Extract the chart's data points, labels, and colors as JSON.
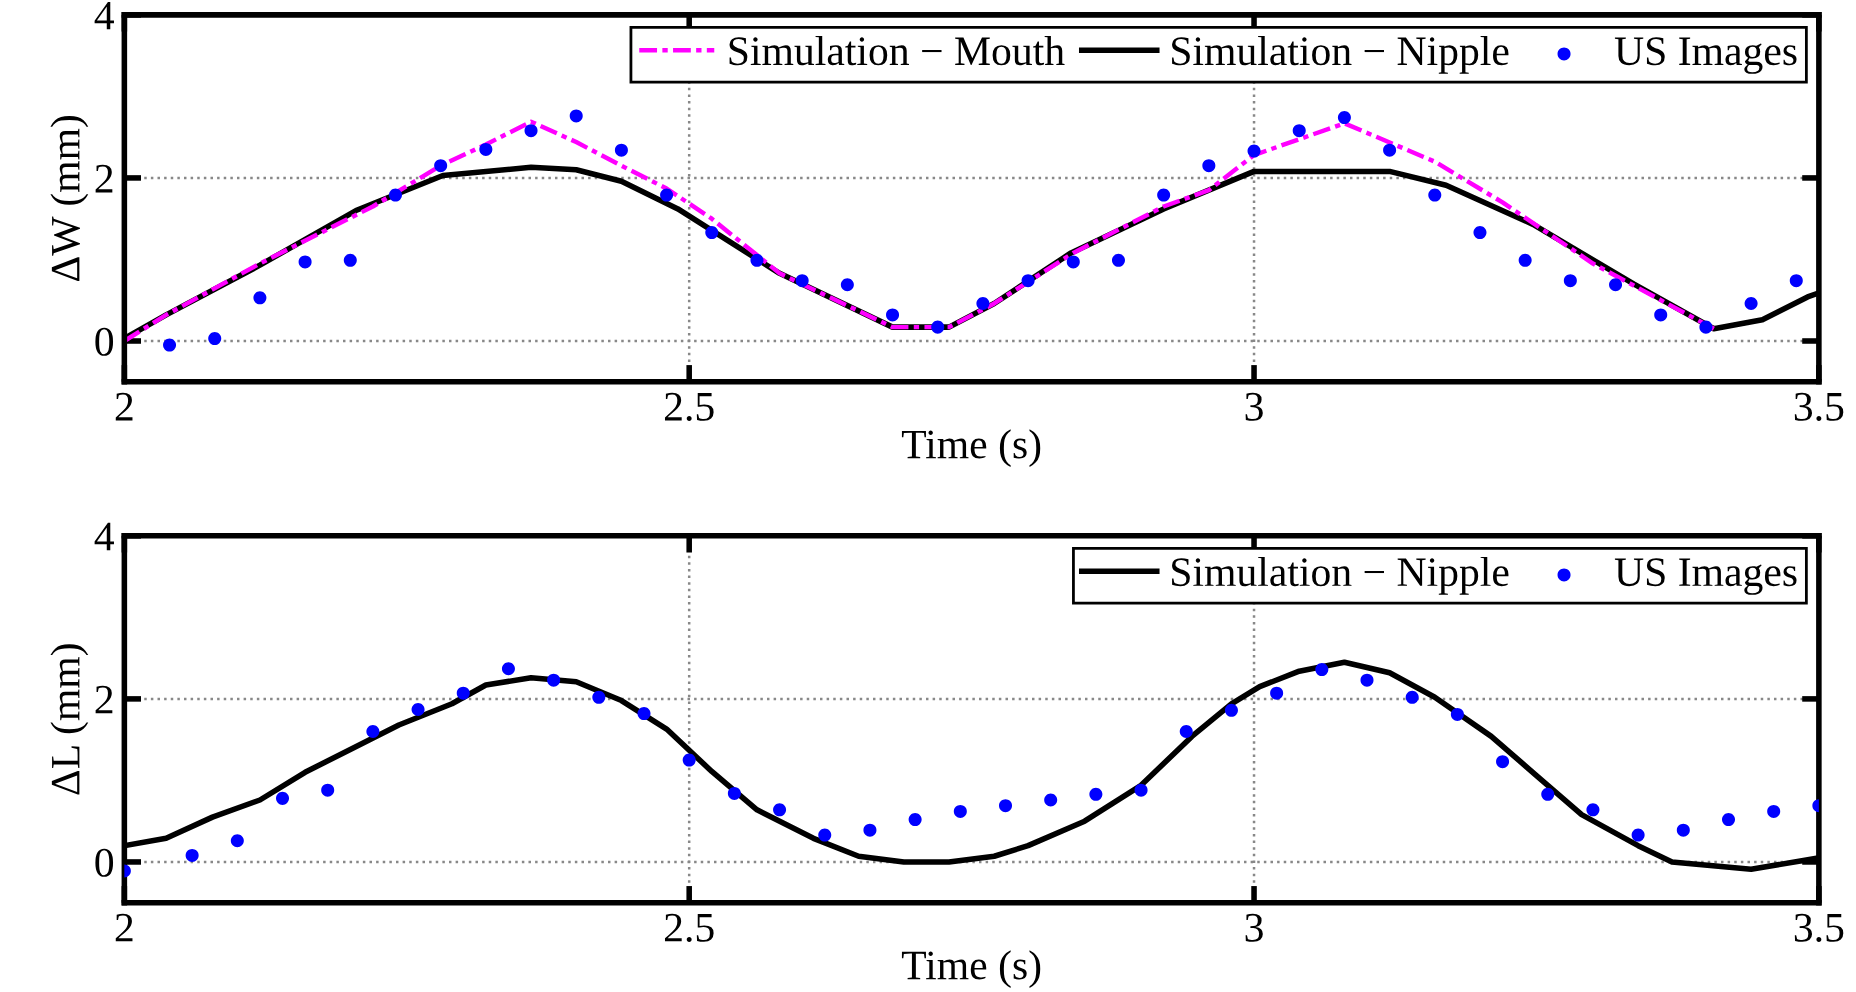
{
  "chart_data": [
    {
      "type": "line",
      "xlabel": "Time (s)",
      "ylabel": "ΔW (mm)",
      "xlim": [
        2,
        3.5
      ],
      "ylim": [
        -0.5,
        4
      ],
      "xticks": [
        2,
        2.5,
        3,
        3.5
      ],
      "yticks": [
        0,
        2,
        4
      ],
      "grid": true,
      "legend": "top right",
      "series": [
        {
          "name": "Simulation − Mouth",
          "color": "#ff00ff",
          "line_style": "dashdot",
          "x": [
            2,
            2.037,
            2.12,
            2.22,
            2.28,
            2.32,
            2.36,
            2.4,
            2.44,
            2.48,
            2.52,
            2.58,
            2.68,
            2.73,
            2.77,
            2.84,
            2.92,
            2.96,
            3.0,
            3.08,
            3.16,
            3.22,
            3.3,
            3.407
          ],
          "values": [
            0,
            0.32,
            0.95,
            1.65,
            2.15,
            2.41,
            2.69,
            2.44,
            2.15,
            1.87,
            1.5,
            0.83,
            0.17,
            0.17,
            0.46,
            1.08,
            1.65,
            1.85,
            2.28,
            2.67,
            2.2,
            1.7,
            0.95,
            0.15
          ]
        },
        {
          "name": "Simulation − Nipple",
          "color": "#000000",
          "line_style": "solid",
          "x": [
            2,
            2.037,
            2.12,
            2.205,
            2.282,
            2.36,
            2.4,
            2.44,
            2.49,
            2.58,
            2.68,
            2.73,
            2.77,
            2.838,
            2.92,
            3.0,
            3.12,
            3.17,
            3.247,
            3.336,
            3.407,
            3.45,
            3.49,
            3.5
          ],
          "values": [
            0.03,
            0.32,
            0.93,
            1.6,
            2.03,
            2.13,
            2.1,
            1.96,
            1.62,
            0.83,
            0.17,
            0.17,
            0.46,
            1.08,
            1.62,
            2.08,
            2.08,
            1.91,
            1.43,
            0.7,
            0.15,
            0.26,
            0.54,
            0.59
          ]
        },
        {
          "name": "US Images",
          "type": "scatter",
          "color": "#0000ff",
          "marker": "circle",
          "x": [
            2.04,
            2.08,
            2.12,
            2.16,
            2.2,
            2.24,
            2.28,
            2.32,
            2.36,
            2.4,
            2.44,
            2.48,
            2.52,
            2.56,
            2.6,
            2.64,
            2.68,
            2.72,
            2.76,
            2.8,
            2.84,
            2.88,
            2.92,
            2.96,
            3.0,
            3.04,
            3.08,
            3.12,
            3.16,
            3.2,
            3.24,
            3.28,
            3.32,
            3.36,
            3.4,
            3.44,
            3.48
          ],
          "values": [
            -0.05,
            0.03,
            0.53,
            0.97,
            0.99,
            1.79,
            2.15,
            2.35,
            2.58,
            2.76,
            2.34,
            1.79,
            1.33,
            0.99,
            0.74,
            0.69,
            0.32,
            0.17,
            0.46,
            0.74,
            0.97,
            0.99,
            1.79,
            2.15,
            2.33,
            2.58,
            2.74,
            2.34,
            1.79,
            1.33,
            0.99,
            0.74,
            0.69,
            0.32,
            0.17,
            0.46,
            0.74
          ]
        }
      ]
    },
    {
      "type": "line",
      "xlabel": "Time (s)",
      "ylabel": "ΔL (mm)",
      "xlim": [
        2,
        3.5
      ],
      "ylim": [
        -0.5,
        4
      ],
      "xticks": [
        2,
        2.5,
        3,
        3.5
      ],
      "yticks": [
        0,
        2,
        4
      ],
      "grid": true,
      "legend": "top right",
      "series": [
        {
          "name": "Simulation − Nipple",
          "color": "#000000",
          "line_style": "solid",
          "x": [
            2,
            2.037,
            2.078,
            2.12,
            2.16,
            2.2,
            2.243,
            2.29,
            2.32,
            2.36,
            2.4,
            2.44,
            2.48,
            2.52,
            2.56,
            2.61,
            2.65,
            2.69,
            2.73,
            2.77,
            2.8,
            2.85,
            2.9,
            2.945,
            2.98,
            3.005,
            3.04,
            3.08,
            3.12,
            3.16,
            3.21,
            3.25,
            3.29,
            3.34,
            3.37,
            3.44,
            3.5
          ],
          "values": [
            0.2,
            0.29,
            0.55,
            0.76,
            1.1,
            1.38,
            1.68,
            1.94,
            2.17,
            2.26,
            2.21,
            1.98,
            1.63,
            1.11,
            0.64,
            0.29,
            0.07,
            0.0,
            0.0,
            0.07,
            0.2,
            0.5,
            0.94,
            1.54,
            1.94,
            2.15,
            2.34,
            2.45,
            2.32,
            2.02,
            1.54,
            1.06,
            0.58,
            0.2,
            0.0,
            -0.09,
            0.05
          ]
        },
        {
          "name": "US Images",
          "type": "scatter",
          "color": "#0000ff",
          "marker": "circle",
          "x": [
            2.0,
            2.06,
            2.1,
            2.14,
            2.18,
            2.22,
            2.26,
            2.3,
            2.34,
            2.38,
            2.42,
            2.46,
            2.5,
            2.54,
            2.58,
            2.62,
            2.66,
            2.7,
            2.74,
            2.78,
            2.82,
            2.86,
            2.9,
            2.94,
            2.98,
            3.02,
            3.06,
            3.1,
            3.14,
            3.18,
            3.22,
            3.26,
            3.3,
            3.34,
            3.38,
            3.42,
            3.46,
            3.5
          ],
          "values": [
            -0.11,
            0.08,
            0.26,
            0.78,
            0.88,
            1.6,
            1.87,
            2.07,
            2.37,
            2.23,
            2.02,
            1.82,
            1.25,
            0.84,
            0.64,
            0.33,
            0.39,
            0.52,
            0.62,
            0.69,
            0.76,
            0.83,
            0.88,
            1.6,
            1.86,
            2.07,
            2.36,
            2.23,
            2.02,
            1.81,
            1.23,
            0.83,
            0.64,
            0.33,
            0.39,
            0.52,
            0.62,
            0.69
          ]
        }
      ]
    }
  ]
}
